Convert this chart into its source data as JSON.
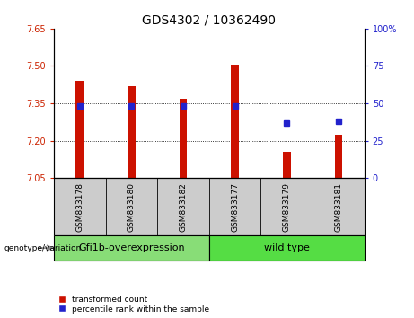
{
  "title": "GDS4302 / 10362490",
  "samples": [
    "GSM833178",
    "GSM833180",
    "GSM833182",
    "GSM833177",
    "GSM833179",
    "GSM833181"
  ],
  "bar_values": [
    7.44,
    7.42,
    7.37,
    7.505,
    7.155,
    7.225
  ],
  "bar_base": 7.05,
  "percentile_values": [
    48,
    48,
    48,
    48,
    37,
    38
  ],
  "ylim_left": [
    7.05,
    7.65
  ],
  "ylim_right": [
    0,
    100
  ],
  "yticks_left": [
    7.05,
    7.2,
    7.35,
    7.5,
    7.65
  ],
  "yticks_right": [
    0,
    25,
    50,
    75,
    100
  ],
  "bar_color": "#cc1100",
  "dot_color": "#2222cc",
  "group1_label": "Gfi1b-overexpression",
  "group2_label": "wild type",
  "group1_color": "#88dd77",
  "group2_color": "#55dd44",
  "group1_indices": [
    0,
    1,
    2
  ],
  "group2_indices": [
    3,
    4,
    5
  ],
  "legend_red_label": "transformed count",
  "legend_blue_label": "percentile rank within the sample",
  "genotype_label": "genotype/variation",
  "tick_bg_color": "#cccccc",
  "title_fontsize": 10,
  "tick_fontsize": 7,
  "label_fontsize": 6.5,
  "group_fontsize": 8,
  "legend_fontsize": 6.5,
  "bar_width": 0.15
}
